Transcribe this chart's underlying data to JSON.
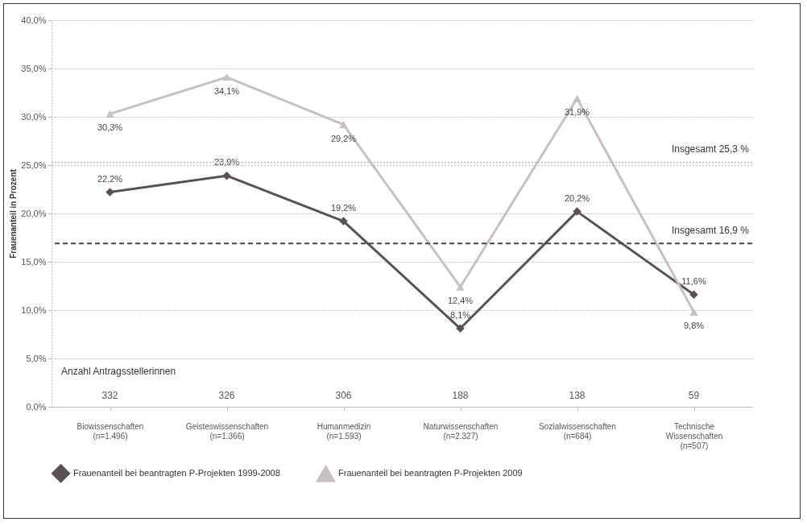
{
  "chart_data": {
    "type": "line",
    "ylabel": "Frauenanteil in Prozent",
    "categories": [
      "Biowissenschaften\n(n=1.496)",
      "Geisteswissenschaften\n(n=1.366)",
      "Humanmedizin\n(n=1.593)",
      "Naturwissenschaften\n(n=2.327)",
      "Sozialwissenschaften\n(n=684)",
      "Technische\nWissenschaften\n(n=507)"
    ],
    "series": [
      {
        "name": "Frauenanteil bei beantragten P-Projekten 1999-2008",
        "color": "#5a5252",
        "marker": "diamond",
        "values": [
          22.2,
          23.9,
          19.2,
          8.1,
          20.2,
          11.6
        ],
        "value_labels": [
          "22,2%",
          "23,9%",
          "19,2%",
          "8,1%",
          "20,2%",
          "11,6%"
        ]
      },
      {
        "name": "Frauenanteil bei beantragten P-Projekten 2009",
        "color": "#c8c0c0",
        "marker": "triangle",
        "values": [
          30.3,
          34.1,
          29.2,
          12.4,
          31.9,
          9.8
        ],
        "value_labels": [
          "30,3%",
          "34,1%",
          "29,2%",
          "12,4%",
          "31,9%",
          "9,8%"
        ]
      }
    ],
    "ylim": [
      0,
      40
    ],
    "yticks": [
      {
        "value": 0,
        "label": "0,0%"
      },
      {
        "value": 5,
        "label": "5,0%"
      },
      {
        "value": 10,
        "label": "10,0%"
      },
      {
        "value": 15,
        "label": "15,0%"
      },
      {
        "value": 20,
        "label": "20,0%"
      },
      {
        "value": 25,
        "label": "25,0%"
      },
      {
        "value": 30,
        "label": "30,0%"
      },
      {
        "value": 35,
        "label": "35,0%"
      },
      {
        "value": 40,
        "label": "40,0%"
      }
    ],
    "ref_lines": [
      {
        "axis": "y",
        "value": 25.3,
        "label": "Insgesamt 25,3 %",
        "color": "#c8c0c0",
        "line_style": "dotted"
      },
      {
        "axis": "y",
        "value": 16.9,
        "label": "Insgesamt 16,9 %",
        "color": "#4a4444",
        "line_style": "dashed"
      }
    ],
    "annotations": [
      "Anzahl Antragsstellerinnen",
      "332",
      "326",
      "306",
      "188",
      "138",
      "59"
    ],
    "grid": "y",
    "legend": "bottom"
  }
}
